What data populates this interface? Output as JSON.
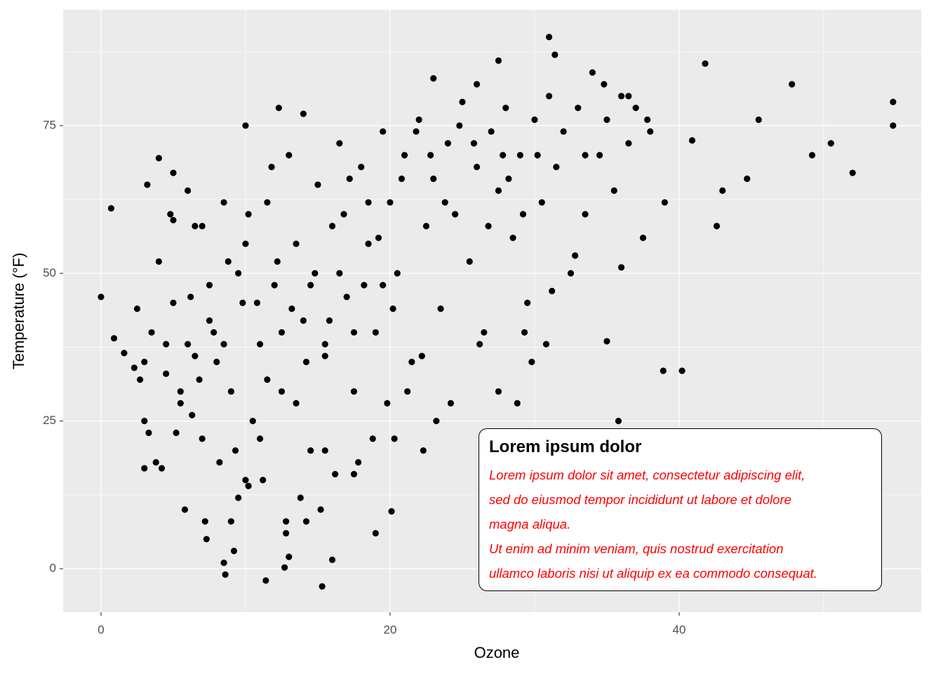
{
  "chart_data": {
    "type": "scatter",
    "xlabel": "Ozone",
    "ylabel": "Temperature (°F)",
    "xlim": [
      -2.62,
      56.75
    ],
    "ylim": [
      -7.37,
      94.6
    ],
    "xticks": [
      0,
      20,
      40
    ],
    "yticks": [
      0,
      25,
      50,
      75
    ],
    "x_minor_grid": [
      10,
      30,
      50
    ],
    "y_minor_grid": [
      12.5,
      37.5,
      62.5,
      87.5
    ],
    "grid": true,
    "color": "#000000",
    "x": [
      0,
      0.7,
      0.9,
      1.6,
      2.3,
      3,
      4,
      5,
      10,
      12.3,
      14,
      31,
      31.4,
      41.8,
      54.8,
      54.8,
      52,
      49.2,
      50.5,
      47.8,
      45.5,
      44.7,
      43,
      42.6,
      40.9,
      11.4,
      15.3,
      8.6,
      12.7,
      19,
      20.1,
      38.9,
      40.2,
      36,
      35,
      35.8,
      3,
      3.5,
      4,
      4.5,
      5,
      5.5,
      6,
      6.5,
      7,
      7.5,
      8,
      8.5,
      9,
      9.5,
      10,
      3.2,
      3.8,
      4.8,
      5.8,
      6.2,
      6.8,
      7.2,
      7.8,
      8.2,
      8.8,
      9.2,
      9.8,
      10.5,
      11,
      11.5,
      12,
      12.5,
      13,
      13.5,
      14,
      14.5,
      15,
      15.5,
      16,
      16.5,
      17,
      17.5,
      18,
      18.5,
      19,
      19.5,
      20,
      20.5,
      21,
      21.5,
      22,
      22.5,
      23,
      23.5,
      24,
      24.5,
      25,
      25.5,
      26,
      26.5,
      27,
      27.5,
      28,
      28.5,
      29,
      29.5,
      30,
      30.5,
      31,
      31.5,
      32,
      32.5,
      33,
      33.5,
      34,
      34.5,
      35,
      35.5,
      36,
      36.5,
      37,
      37.5,
      38,
      39,
      11.2,
      12.8,
      13.8,
      15.2,
      16.2,
      17.8,
      18.8,
      19.8,
      21.2,
      22.2,
      23.2,
      24.2,
      26.2,
      27.5,
      28.8,
      29.8,
      30.8,
      31.2,
      32.8,
      29.3,
      10.2,
      11.8,
      12.2,
      13.2,
      14.2,
      14.8,
      15.8,
      16.8,
      17.2,
      18.2,
      19.2,
      20.2,
      20.8,
      21.8,
      22.8,
      23.8,
      24.8,
      25.8,
      26.8,
      27.8,
      28.2,
      29.2,
      30.2,
      9.5,
      8.5,
      7.5,
      6.5,
      5.5,
      4.5,
      10.8,
      11.5,
      12.5,
      13.5,
      14.5,
      15.5,
      16.5,
      17.5,
      18.5,
      19.5,
      33.5,
      36.5,
      37.8,
      34.8,
      23,
      27.5,
      26,
      6,
      7,
      5,
      2.5,
      2.7,
      3,
      3.3,
      4.2,
      5.2,
      6.3,
      7.3,
      8.5,
      9.3,
      10.2,
      9,
      10,
      11,
      13,
      14.2,
      12.8,
      16,
      15.5,
      17.5,
      20.3,
      22.3
    ],
    "values": [
      46,
      61,
      39,
      36.5,
      34,
      17,
      69.5,
      67,
      75,
      78,
      77,
      90,
      87,
      85.5,
      79,
      75,
      67,
      70,
      72,
      82,
      76,
      66,
      64,
      58,
      72.5,
      -2,
      -3,
      -1,
      0.2,
      6,
      9.7,
      33.5,
      33.5,
      51,
      38.5,
      25,
      25,
      40,
      52,
      33,
      45,
      28,
      38,
      58,
      22,
      48,
      35,
      62,
      30,
      12,
      55,
      65,
      18,
      60,
      10,
      46,
      32,
      8,
      40,
      18,
      52,
      3,
      45,
      25,
      38,
      62,
      48,
      30,
      70,
      55,
      42,
      20,
      65,
      38,
      58,
      72,
      46,
      30,
      68,
      55,
      40,
      74,
      62,
      50,
      70,
      35,
      76,
      58,
      66,
      44,
      72,
      60,
      79,
      52,
      68,
      40,
      74,
      64,
      78,
      56,
      70,
      45,
      76,
      62,
      80,
      68,
      74,
      50,
      78,
      60,
      84,
      70,
      76,
      64,
      80,
      72,
      78,
      56,
      74,
      62,
      15,
      8,
      12,
      10,
      16,
      18,
      22,
      28,
      30,
      36,
      25,
      28,
      38,
      30,
      28,
      35,
      38,
      47,
      53,
      40,
      60,
      68,
      52,
      44,
      35,
      50,
      42,
      60,
      66,
      48,
      56,
      44,
      66,
      74,
      70,
      62,
      75,
      72,
      58,
      70,
      66,
      60,
      70,
      50,
      38,
      42,
      36,
      30,
      38,
      45,
      32,
      40,
      28,
      48,
      36,
      50,
      40,
      62,
      48,
      70,
      80,
      76,
      82,
      83,
      86,
      82,
      64,
      58,
      59,
      44,
      32,
      35,
      23,
      17,
      23,
      26,
      5,
      1,
      20,
      14,
      8,
      15,
      22,
      2,
      8,
      6,
      1.5,
      20,
      16,
      22,
      20
    ],
    "annotation": {
      "title": "Lorem ipsum dolor",
      "lines": [
        "Lorem ipsum dolor sit amet, consectetur adipiscing elit,",
        "sed do eiusmod tempor incididunt ut labore et dolore",
        "magna aliqua.",
        "Ut enim ad minim veniam, quis nostrud exercitation",
        "ullamco laboris nisi ut aliquip ex ea commodo consequat."
      ]
    }
  }
}
